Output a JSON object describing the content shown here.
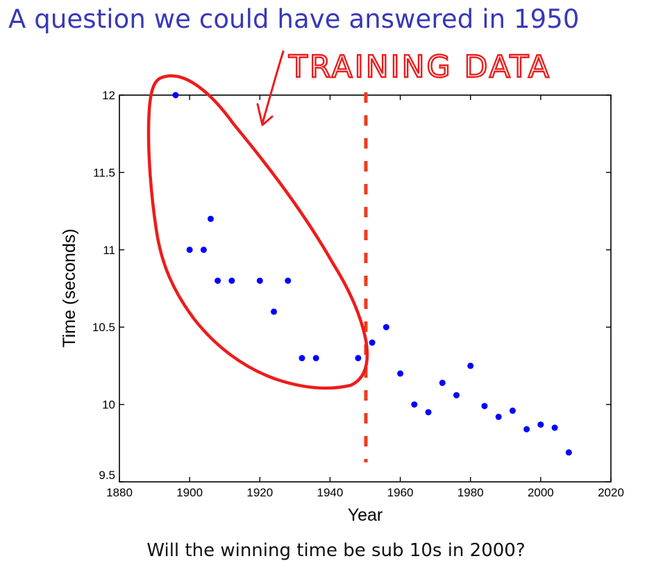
{
  "slide": {
    "title": "A question we could have answered in 1950",
    "caption": "Will the winning time be sub 10s in 2000?"
  },
  "chart_data": {
    "type": "scatter",
    "title": "",
    "xlabel": "Year",
    "ylabel": "Time (seconds)",
    "xlim": [
      1880,
      2020
    ],
    "ylim": [
      9.5,
      12
    ],
    "xticks": [
      1880,
      1900,
      1920,
      1940,
      1960,
      1980,
      2000,
      2020
    ],
    "yticks": [
      9.5,
      10,
      10.5,
      11,
      11.5,
      12
    ],
    "xtick_labels": [
      "1880",
      "1900",
      "1920",
      "1940",
      "1960",
      "1980",
      "2000",
      "2020"
    ],
    "ytick_labels": [
      "9.5",
      "10",
      "10.5",
      "11",
      "11.5",
      "12"
    ],
    "grid": false,
    "series": [
      {
        "color": "#0000ff",
        "x": [
          1896,
          1900,
          1904,
          1906,
          1908,
          1912,
          1920,
          1924,
          1928,
          1932,
          1936,
          1948,
          1952,
          1956,
          1960,
          1964,
          1968,
          1972,
          1976,
          1980,
          1984,
          1988,
          1992,
          1996,
          2000,
          2004,
          2008
        ],
        "y": [
          12.0,
          11.0,
          11.0,
          11.2,
          10.8,
          10.8,
          10.8,
          10.6,
          10.8,
          10.3,
          10.3,
          10.3,
          10.4,
          10.5,
          10.2,
          10.0,
          9.95,
          10.14,
          10.06,
          10.25,
          9.99,
          9.92,
          9.96,
          9.84,
          9.87,
          9.85,
          9.69
        ]
      }
    ],
    "annotations": {
      "label": "TRAINING DATA",
      "divider_year": 1950,
      "color": "#ee1c1c",
      "divider_color": "#ef3b1c"
    }
  }
}
